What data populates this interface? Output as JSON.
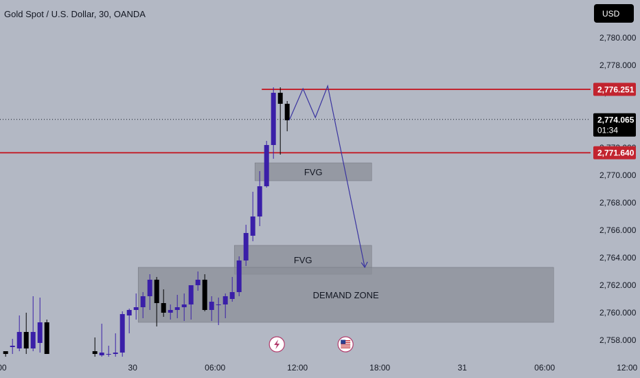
{
  "header": {
    "symbol_title": "Gold Spot / U.S. Dollar, 30, OANDA",
    "currency_button": "USD"
  },
  "colors": {
    "background": "#b3b8c4",
    "bull": "#3a1fa8",
    "bear": "#000000",
    "level_line": "#c2242f",
    "zone_fill": "#8b8f98",
    "path": "#3a34a0",
    "price_tag": "#000000"
  },
  "chart_data": {
    "type": "candlestick",
    "symbol": "Gold Spot / U.S. Dollar, 30, OANDA",
    "ylim": [
      2756.5,
      2781.5
    ],
    "y_ticks": [
      2780,
      2778,
      2776,
      2774,
      2772,
      2770,
      2768,
      2766,
      2764,
      2762,
      2760,
      2758
    ],
    "y_tick_labels": [
      "2,780.000",
      "2,778.000",
      "2,776.000",
      "2,774.000",
      "2,772.000",
      "2,770.000",
      "2,768.000",
      "2,766.000",
      "2,764.000",
      "2,762.000",
      "2,760.000",
      "2,758.000"
    ],
    "x_tick_labels": [
      {
        "label": ":00",
        "bar": -0.7
      },
      {
        "label": "30",
        "bar": 18.5
      },
      {
        "label": "06:00",
        "bar": 30.5
      },
      {
        "label": "12:00",
        "bar": 42.5
      },
      {
        "label": "18:00",
        "bar": 54.5
      },
      {
        "label": "31",
        "bar": 66.5
      },
      {
        "label": "06:00",
        "bar": 78.5
      },
      {
        "label": "12:00",
        "bar": 90.5
      }
    ],
    "candles": [
      {
        "bar": 0,
        "o": 2757.2,
        "h": 2757.2,
        "l": 2756.8,
        "c": 2757.0
      },
      {
        "bar": 1,
        "o": 2757.5,
        "h": 2758.1,
        "l": 2757.0,
        "c": 2757.6
      },
      {
        "bar": 2,
        "o": 2757.4,
        "h": 2759.8,
        "l": 2757.2,
        "c": 2758.6
      },
      {
        "bar": 3,
        "o": 2758.6,
        "h": 2760.0,
        "l": 2757.0,
        "c": 2757.4
      },
      {
        "bar": 4,
        "o": 2757.4,
        "h": 2761.2,
        "l": 2757.2,
        "c": 2758.6
      },
      {
        "bar": 5,
        "o": 2757.8,
        "h": 2761.1,
        "l": 2757.1,
        "c": 2759.3
      },
      {
        "bar": 6,
        "o": 2759.3,
        "h": 2759.5,
        "l": 2757.0,
        "c": 2757.0
      },
      {
        "bar": 13,
        "o": 2757.2,
        "h": 2758.2,
        "l": 2756.8,
        "c": 2757.0
      },
      {
        "bar": 14,
        "o": 2756.9,
        "h": 2759.2,
        "l": 2756.8,
        "c": 2757.1
      },
      {
        "bar": 15,
        "o": 2757.0,
        "h": 2757.6,
        "l": 2756.8,
        "c": 2757.0
      },
      {
        "bar": 16,
        "o": 2757.0,
        "h": 2758.5,
        "l": 2756.8,
        "c": 2757.1
      },
      {
        "bar": 17,
        "o": 2757.1,
        "h": 2760.1,
        "l": 2756.8,
        "c": 2759.9
      },
      {
        "bar": 18,
        "o": 2759.8,
        "h": 2760.3,
        "l": 2758.5,
        "c": 2760.2
      },
      {
        "bar": 19,
        "o": 2760.2,
        "h": 2761.4,
        "l": 2759.5,
        "c": 2760.4
      },
      {
        "bar": 20,
        "o": 2760.4,
        "h": 2761.5,
        "l": 2759.6,
        "c": 2761.2
      },
      {
        "bar": 21,
        "o": 2761.2,
        "h": 2762.8,
        "l": 2760.2,
        "c": 2762.4
      },
      {
        "bar": 22,
        "o": 2762.4,
        "h": 2762.6,
        "l": 2759.0,
        "c": 2760.7
      },
      {
        "bar": 23,
        "o": 2760.7,
        "h": 2761.7,
        "l": 2759.7,
        "c": 2760.0
      },
      {
        "bar": 24,
        "o": 2760.0,
        "h": 2760.6,
        "l": 2759.5,
        "c": 2760.2
      },
      {
        "bar": 25,
        "o": 2760.2,
        "h": 2761.3,
        "l": 2759.6,
        "c": 2760.4
      },
      {
        "bar": 26,
        "o": 2760.4,
        "h": 2761.4,
        "l": 2759.4,
        "c": 2760.6
      },
      {
        "bar": 27,
        "o": 2760.6,
        "h": 2761.9,
        "l": 2759.5,
        "c": 2762.0
      },
      {
        "bar": 28,
        "o": 2762.0,
        "h": 2763.0,
        "l": 2761.6,
        "c": 2762.4
      },
      {
        "bar": 29,
        "o": 2762.4,
        "h": 2762.8,
        "l": 2760.1,
        "c": 2760.2
      },
      {
        "bar": 30,
        "o": 2760.2,
        "h": 2761.2,
        "l": 2759.4,
        "c": 2760.8
      },
      {
        "bar": 31,
        "o": 2760.6,
        "h": 2761.1,
        "l": 2759.1,
        "c": 2760.6
      },
      {
        "bar": 32,
        "o": 2760.6,
        "h": 2761.4,
        "l": 2759.6,
        "c": 2761.2
      },
      {
        "bar": 33,
        "o": 2761.0,
        "h": 2762.6,
        "l": 2760.8,
        "c": 2761.5
      },
      {
        "bar": 34,
        "o": 2761.5,
        "h": 2764.1,
        "l": 2761.2,
        "c": 2763.8
      },
      {
        "bar": 35,
        "o": 2763.8,
        "h": 2766.4,
        "l": 2763.4,
        "c": 2765.8
      },
      {
        "bar": 36,
        "o": 2765.6,
        "h": 2768.8,
        "l": 2765.2,
        "c": 2767.0
      },
      {
        "bar": 37,
        "o": 2767.0,
        "h": 2770.3,
        "l": 2766.3,
        "c": 2769.2
      },
      {
        "bar": 38,
        "o": 2769.2,
        "h": 2772.5,
        "l": 2769.1,
        "c": 2772.2
      },
      {
        "bar": 39,
        "o": 2772.2,
        "h": 2776.4,
        "l": 2771.2,
        "c": 2776.0
      },
      {
        "bar": 40,
        "o": 2776.0,
        "h": 2776.4,
        "l": 2771.5,
        "c": 2775.2
      },
      {
        "bar": 41,
        "o": 2775.2,
        "h": 2775.4,
        "l": 2773.2,
        "c": 2774.0
      }
    ],
    "current_price": {
      "label": "2,774.065",
      "countdown": "01:34",
      "value": 2774.065
    },
    "horizontal_levels": [
      {
        "label": "2,776.251",
        "value": 2776.251
      },
      {
        "label": "2,771.640",
        "value": 2771.64
      }
    ],
    "zones": [
      {
        "label": "FVG",
        "from_bar": 36.3,
        "to_bar": 53.3,
        "top": 2770.9,
        "bottom": 2769.6
      },
      {
        "label": "FVG",
        "from_bar": 33.3,
        "to_bar": 53.3,
        "top": 2764.9,
        "bottom": 2762.8
      },
      {
        "label": "DEMAND ZONE",
        "from_bar": 19.3,
        "to_bar": 79.8,
        "top": 2763.3,
        "bottom": 2759.3
      }
    ],
    "projected_path": [
      {
        "bar": 41.3,
        "price": 2774.0
      },
      {
        "bar": 43.3,
        "price": 2776.3
      },
      {
        "bar": 45.1,
        "price": 2774.2
      },
      {
        "bar": 46.9,
        "price": 2776.5
      },
      {
        "bar": 52.3,
        "price": 2763.3
      }
    ],
    "event_markers": [
      {
        "icon": "lightning-icon",
        "bar": 39.5
      },
      {
        "icon": "us-flag-icon",
        "bar": 49.5
      }
    ]
  }
}
